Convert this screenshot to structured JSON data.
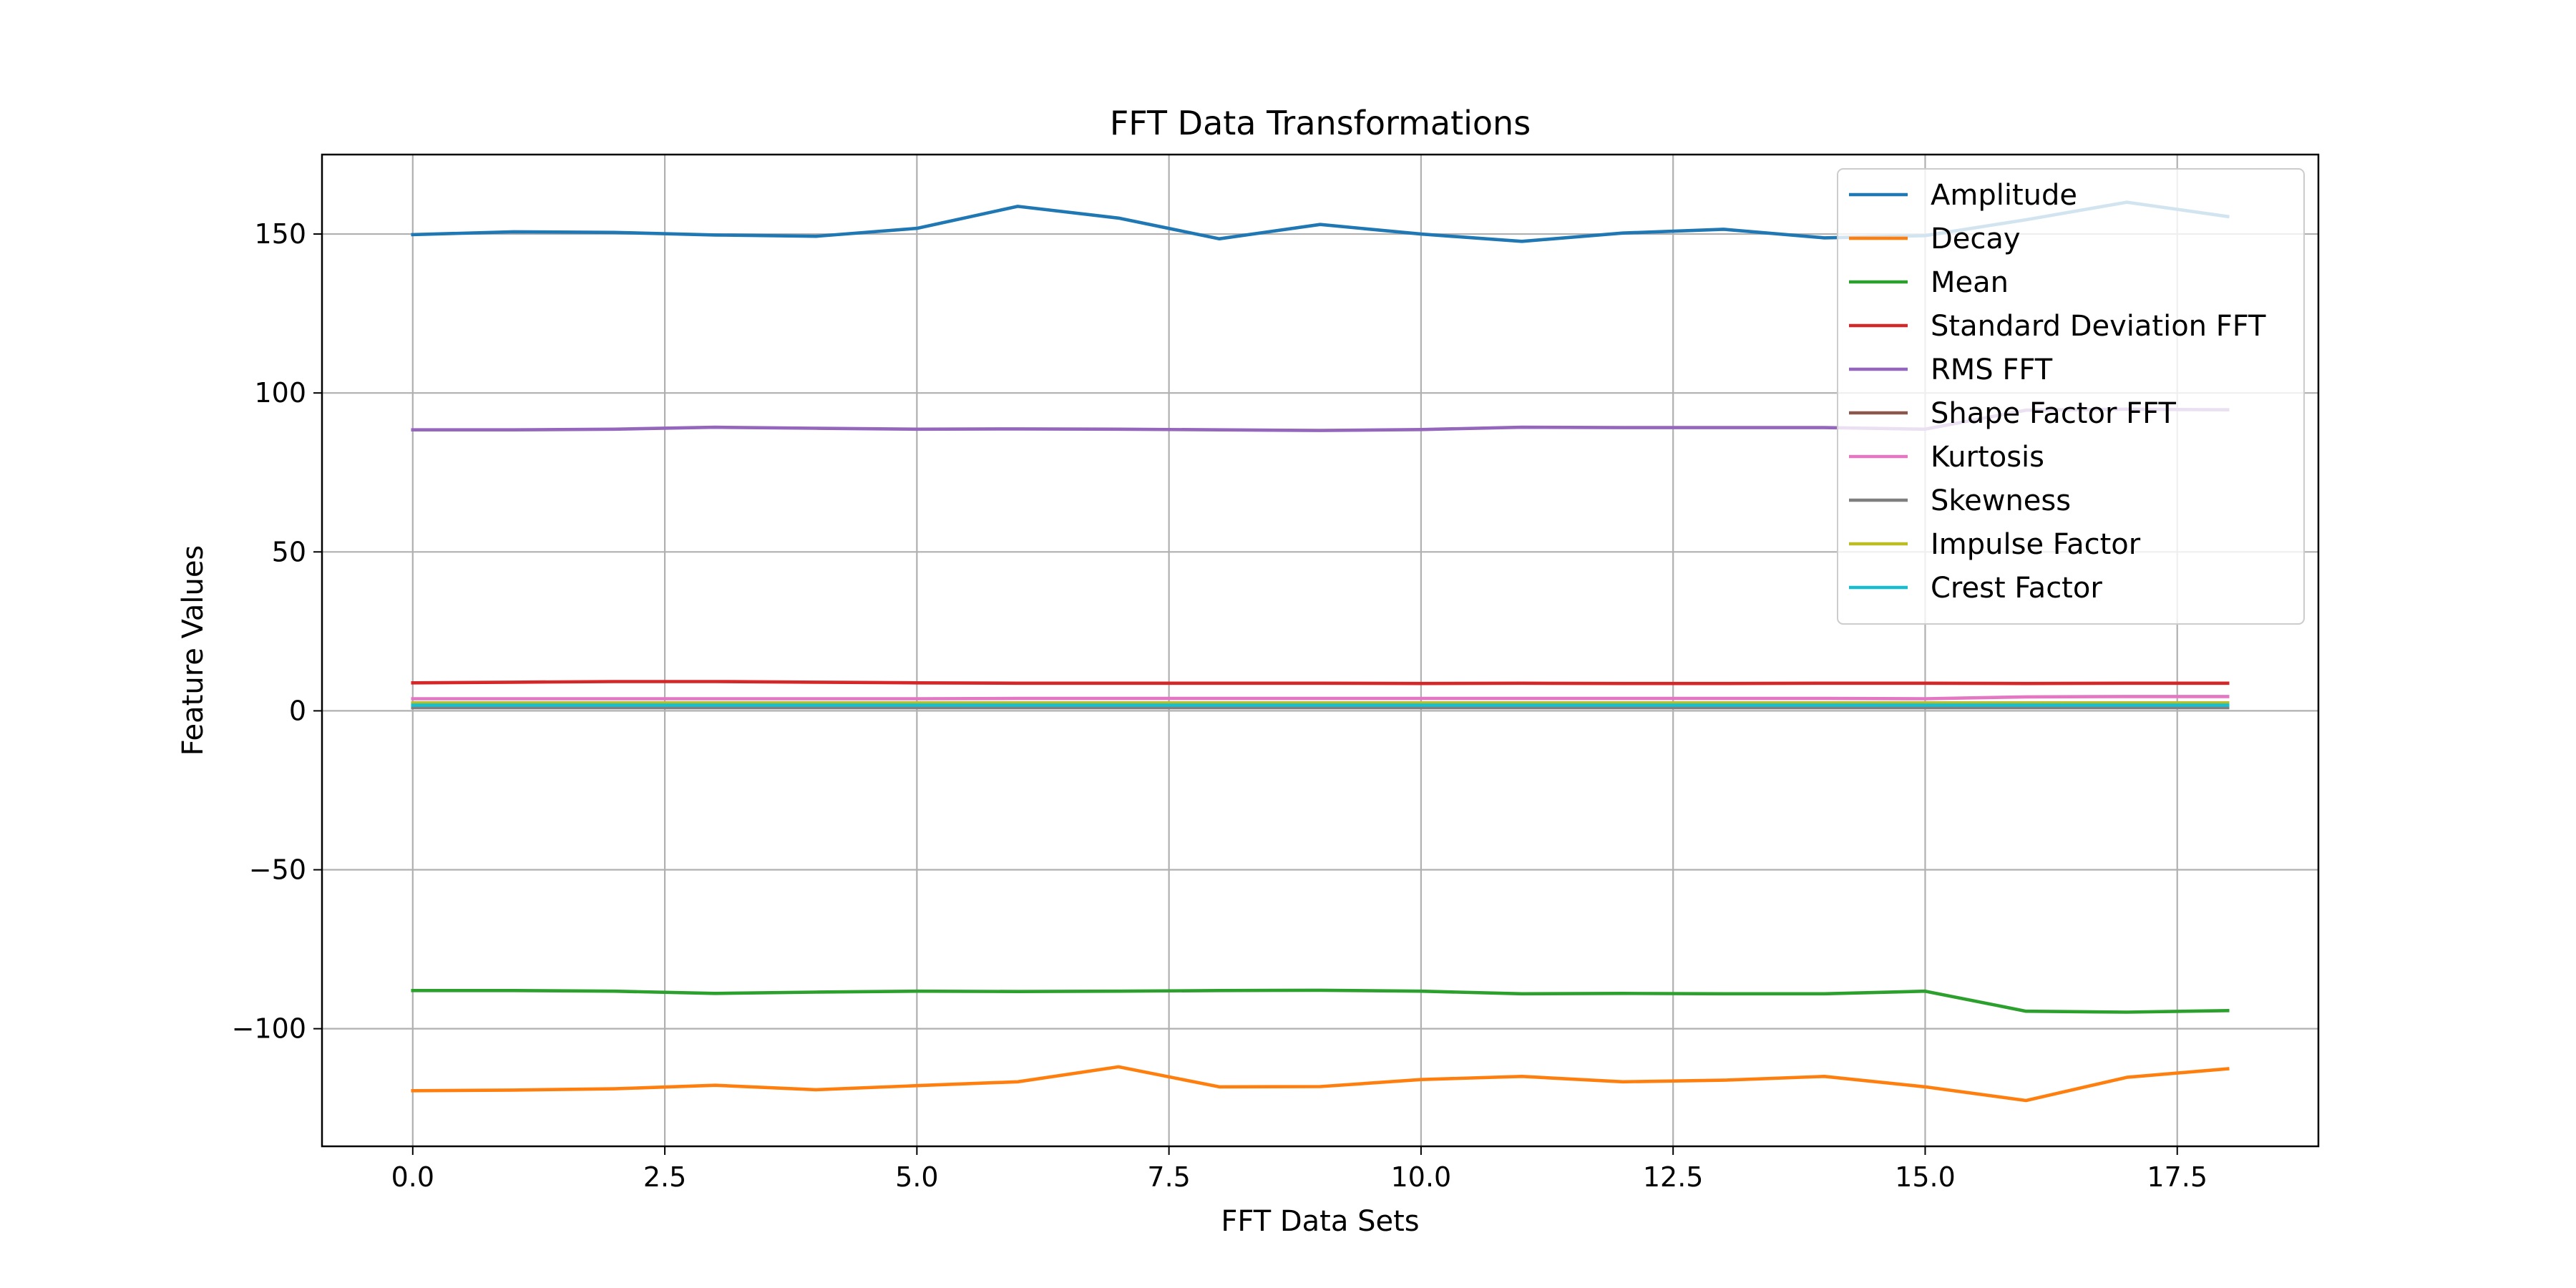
{
  "chart_data": {
    "type": "line",
    "title": "FFT Data Transformations",
    "xlabel": "FFT Data Sets",
    "ylabel": "Feature Values",
    "xlim": [
      -0.9,
      18.9
    ],
    "ylim": [
      -137,
      175
    ],
    "xticks": [
      0.0,
      2.5,
      5.0,
      7.5,
      10.0,
      12.5,
      15.0,
      17.5
    ],
    "xtick_labels": [
      "0.0",
      "2.5",
      "5.0",
      "7.5",
      "10.0",
      "12.5",
      "15.0",
      "17.5"
    ],
    "yticks": [
      -100,
      -50,
      0,
      50,
      100,
      150
    ],
    "ytick_labels": [
      "−100",
      "−50",
      "0",
      "50",
      "100",
      "150"
    ],
    "grid": true,
    "legend_position": "top-right",
    "x": [
      0,
      1,
      2,
      3,
      4,
      5,
      6,
      7,
      8,
      9,
      10,
      11,
      12,
      13,
      14,
      15,
      16,
      17,
      18
    ],
    "series": [
      {
        "name": "Amplitude",
        "color": "#1f77b4",
        "values": [
          149.8,
          150.7,
          150.5,
          149.7,
          149.3,
          151.8,
          158.7,
          155.0,
          148.5,
          153.0,
          150.0,
          147.7,
          150.3,
          151.5,
          148.8,
          149.5,
          154.5,
          160.0,
          155.5
        ]
      },
      {
        "name": "Decay",
        "color": "#ff7f0e",
        "values": [
          -119.5,
          -119.3,
          -118.9,
          -117.8,
          -119.2,
          -117.9,
          -116.7,
          -112.0,
          -118.3,
          -118.2,
          -116.0,
          -115.0,
          -116.7,
          -116.2,
          -115.0,
          -118.3,
          -122.6,
          -115.3,
          -112.6
        ]
      },
      {
        "name": "Mean",
        "color": "#2ca02c",
        "values": [
          -88.0,
          -88.0,
          -88.2,
          -88.9,
          -88.5,
          -88.2,
          -88.3,
          -88.2,
          -88.0,
          -87.9,
          -88.2,
          -89.0,
          -88.9,
          -89.0,
          -89.0,
          -88.2,
          -94.5,
          -94.8,
          -94.3
        ]
      },
      {
        "name": "Standard Deviation FFT",
        "color": "#d62728",
        "values": [
          8.8,
          9.0,
          9.2,
          9.2,
          9.0,
          8.8,
          8.7,
          8.7,
          8.7,
          8.7,
          8.6,
          8.7,
          8.6,
          8.6,
          8.7,
          8.7,
          8.6,
          8.7,
          8.7
        ]
      },
      {
        "name": "RMS FFT",
        "color": "#9467bd",
        "values": [
          88.4,
          88.4,
          88.6,
          89.2,
          88.9,
          88.6,
          88.7,
          88.6,
          88.4,
          88.2,
          88.5,
          89.2,
          89.1,
          89.1,
          89.1,
          88.6,
          94.6,
          94.9,
          94.7
        ]
      },
      {
        "name": "Shape Factor FFT",
        "color": "#8c564b",
        "values": [
          1.5,
          1.5,
          1.5,
          1.5,
          1.5,
          1.5,
          1.5,
          1.5,
          1.5,
          1.5,
          1.5,
          1.5,
          1.5,
          1.5,
          1.5,
          1.5,
          1.5,
          1.5,
          1.5
        ]
      },
      {
        "name": "Kurtosis",
        "color": "#e377c2",
        "values": [
          3.8,
          3.8,
          3.8,
          3.8,
          3.8,
          3.8,
          3.9,
          3.9,
          3.9,
          3.9,
          3.9,
          3.9,
          3.9,
          3.9,
          3.9,
          3.8,
          4.4,
          4.5,
          4.5
        ]
      },
      {
        "name": "Skewness",
        "color": "#7f7f7f",
        "values": [
          1.0,
          1.0,
          1.0,
          1.0,
          1.0,
          1.0,
          1.0,
          1.0,
          1.0,
          1.0,
          1.0,
          1.0,
          1.0,
          1.0,
          1.0,
          1.0,
          1.0,
          1.0,
          1.0
        ]
      },
      {
        "name": "Impulse Factor",
        "color": "#bcbd22",
        "values": [
          2.5,
          2.5,
          2.5,
          2.5,
          2.5,
          2.5,
          2.5,
          2.5,
          2.5,
          2.5,
          2.5,
          2.5,
          2.5,
          2.5,
          2.5,
          2.5,
          2.5,
          2.5,
          2.5
        ]
      },
      {
        "name": "Crest Factor",
        "color": "#17becf",
        "values": [
          1.8,
          1.8,
          1.8,
          1.8,
          1.8,
          1.8,
          1.8,
          1.8,
          1.8,
          1.8,
          1.8,
          1.8,
          1.8,
          1.8,
          1.8,
          1.8,
          1.8,
          1.8,
          1.8
        ]
      }
    ]
  }
}
